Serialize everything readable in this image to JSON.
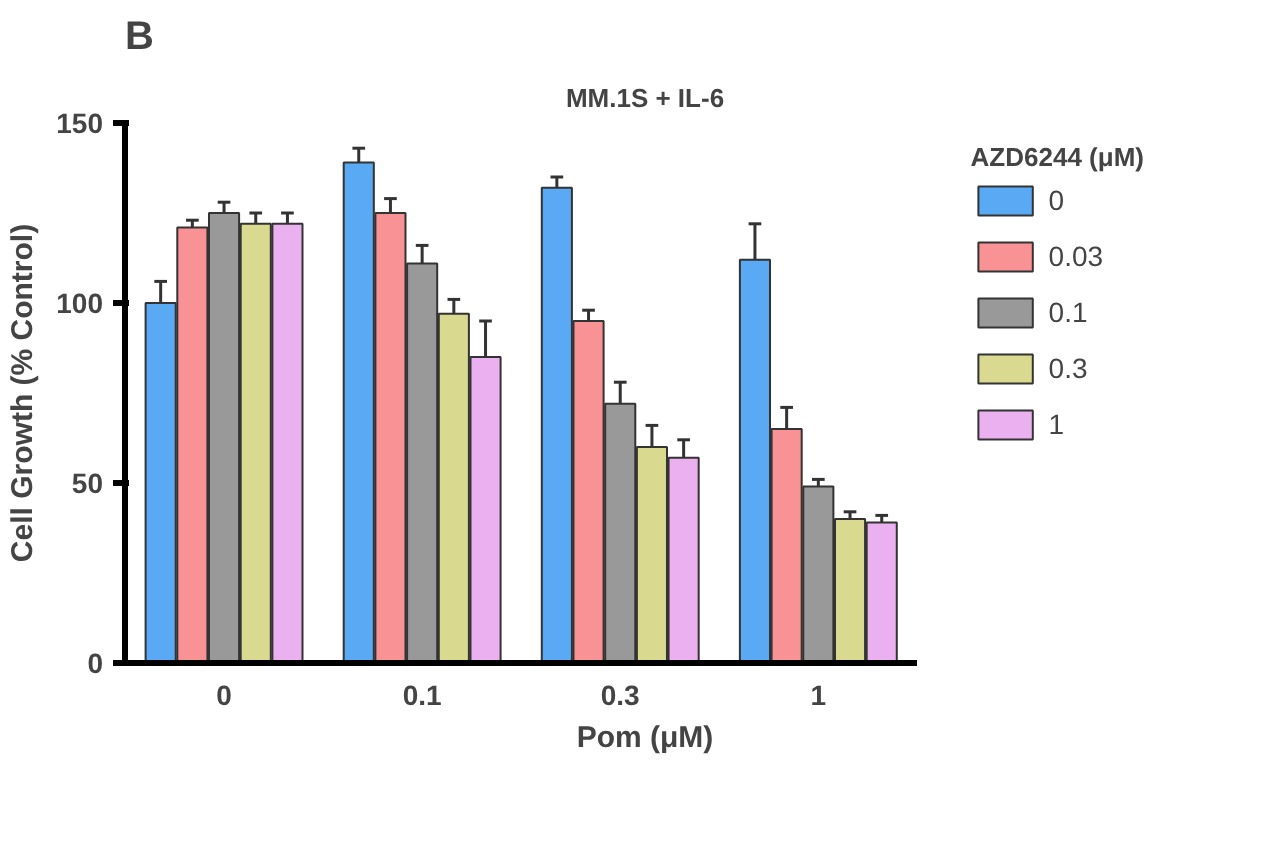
{
  "chart_data": {
    "type": "bar",
    "title": "MM.1S + IL-6",
    "xlabel": "Pom (μM)",
    "ylabel": "Cell Growth (% Control)",
    "legend_title": "AZD6244 (μM)",
    "annotations": [
      "B"
    ],
    "categories": [
      "0",
      "0.1",
      "0.3",
      "1"
    ],
    "series": [
      {
        "name": "0",
        "color": "#5aa9f5",
        "values": [
          100,
          139,
          132,
          112
        ],
        "errors": [
          [
            100,
            106
          ],
          [
            139,
            143
          ],
          [
            132,
            135
          ],
          [
            112,
            122
          ]
        ]
      },
      {
        "name": "0.03",
        "color": "#f99295",
        "values": [
          121,
          125,
          95,
          65
        ],
        "errors": [
          [
            121,
            123
          ],
          [
            125,
            129
          ],
          [
            95,
            98
          ],
          [
            65,
            71
          ]
        ]
      },
      {
        "name": "0.1",
        "color": "#999999",
        "values": [
          125,
          111,
          72,
          49
        ],
        "errors": [
          [
            125,
            128
          ],
          [
            111,
            116
          ],
          [
            72,
            78
          ],
          [
            49,
            51
          ]
        ]
      },
      {
        "name": "0.3",
        "color": "#d9d98f",
        "values": [
          122,
          97,
          60,
          40
        ],
        "errors": [
          [
            122,
            125
          ],
          [
            97,
            101
          ],
          [
            60,
            66
          ],
          [
            40,
            42
          ]
        ]
      },
      {
        "name": "1",
        "color": "#ebb0ef",
        "values": [
          122,
          85,
          57,
          39
        ],
        "errors": [
          [
            122,
            125
          ],
          [
            85,
            95
          ],
          [
            57,
            62
          ],
          [
            39,
            41
          ]
        ]
      }
    ],
    "ylim": [
      0,
      150
    ],
    "yticks": [
      0,
      50,
      100,
      150
    ],
    "grid": false,
    "legend": "right"
  }
}
